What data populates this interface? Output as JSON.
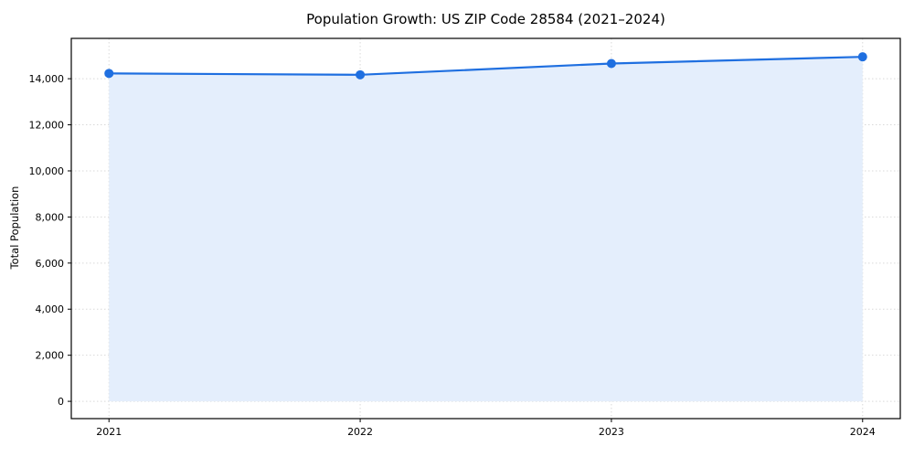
{
  "chart_data": {
    "type": "area",
    "title": "Population Growth: US ZIP Code 28584 (2021–2024)",
    "xlabel": "",
    "ylabel": "Total Population",
    "categories": [
      "2021",
      "2022",
      "2023",
      "2024"
    ],
    "series": [
      {
        "name": "Total Population",
        "values": [
          14230,
          14170,
          14660,
          14950
        ]
      }
    ],
    "ylim": [
      0,
      15000
    ],
    "yticks": [
      0,
      2000,
      4000,
      6000,
      8000,
      10000,
      12000,
      14000
    ],
    "ytick_labels": [
      "0",
      "2,000",
      "4,000",
      "6,000",
      "8,000",
      "10,000",
      "12,000",
      "14,000"
    ],
    "grid": true,
    "legend": false,
    "marker": "circle",
    "colors": {
      "line": "#1f6fe0",
      "marker": "#1f6fe0",
      "fill": "#e4eefc",
      "grid": "#d9d9d9",
      "axis": "#000000",
      "background": "#ffffff"
    }
  }
}
